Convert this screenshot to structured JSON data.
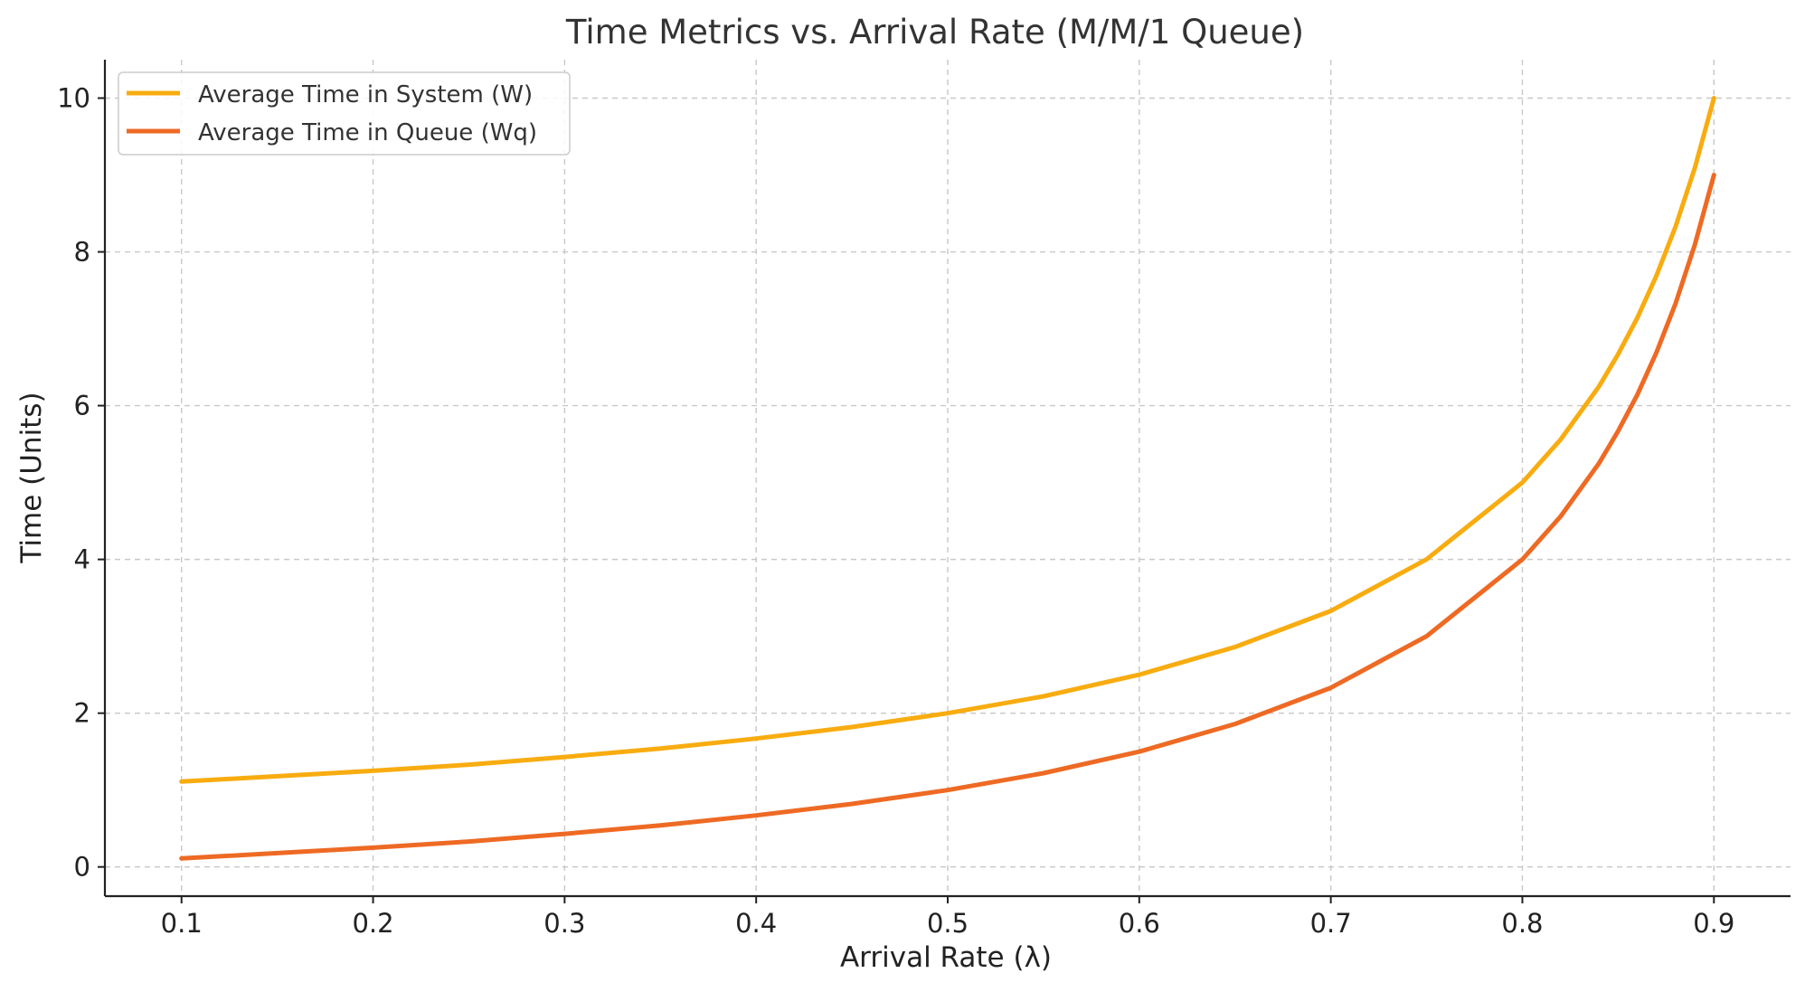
{
  "chart_data": {
    "type": "line",
    "title": "Time Metrics vs. Arrival Rate (M/M/1 Queue)",
    "xlabel": "Arrival Rate (λ)",
    "ylabel": "Time (Units)",
    "xlim": [
      0.06,
      0.94
    ],
    "ylim": [
      -0.38,
      10.5
    ],
    "xticks": [
      0.1,
      0.2,
      0.3,
      0.4,
      0.5,
      0.6,
      0.7,
      0.8,
      0.9
    ],
    "xtick_labels": [
      "0.1",
      "0.2",
      "0.3",
      "0.4",
      "0.5",
      "0.6",
      "0.7",
      "0.8",
      "0.9"
    ],
    "yticks": [
      0,
      2,
      4,
      6,
      8,
      10
    ],
    "ytick_labels": [
      "0",
      "2",
      "4",
      "6",
      "8",
      "10"
    ],
    "grid": true,
    "legend_position": "top-left",
    "x": [
      0.1,
      0.15,
      0.2,
      0.25,
      0.3,
      0.35,
      0.4,
      0.45,
      0.5,
      0.55,
      0.6,
      0.65,
      0.7,
      0.75,
      0.8,
      0.82,
      0.84,
      0.85,
      0.86,
      0.87,
      0.88,
      0.89,
      0.9
    ],
    "series": [
      {
        "name": "Average Time in System (W)",
        "color": "#F8AC10",
        "values": [
          1.11,
          1.18,
          1.25,
          1.33,
          1.43,
          1.54,
          1.67,
          1.82,
          2.0,
          2.22,
          2.5,
          2.86,
          3.33,
          4.0,
          5.0,
          5.56,
          6.25,
          6.67,
          7.14,
          7.69,
          8.33,
          9.09,
          10.0
        ]
      },
      {
        "name": "Average Time in Queue (Wq)",
        "color": "#EE6A24",
        "values": [
          0.11,
          0.18,
          0.25,
          0.33,
          0.43,
          0.54,
          0.67,
          0.82,
          1.0,
          1.22,
          1.5,
          1.86,
          2.33,
          3.0,
          4.0,
          4.56,
          5.25,
          5.67,
          6.14,
          6.69,
          7.33,
          8.09,
          9.0
        ]
      }
    ]
  }
}
